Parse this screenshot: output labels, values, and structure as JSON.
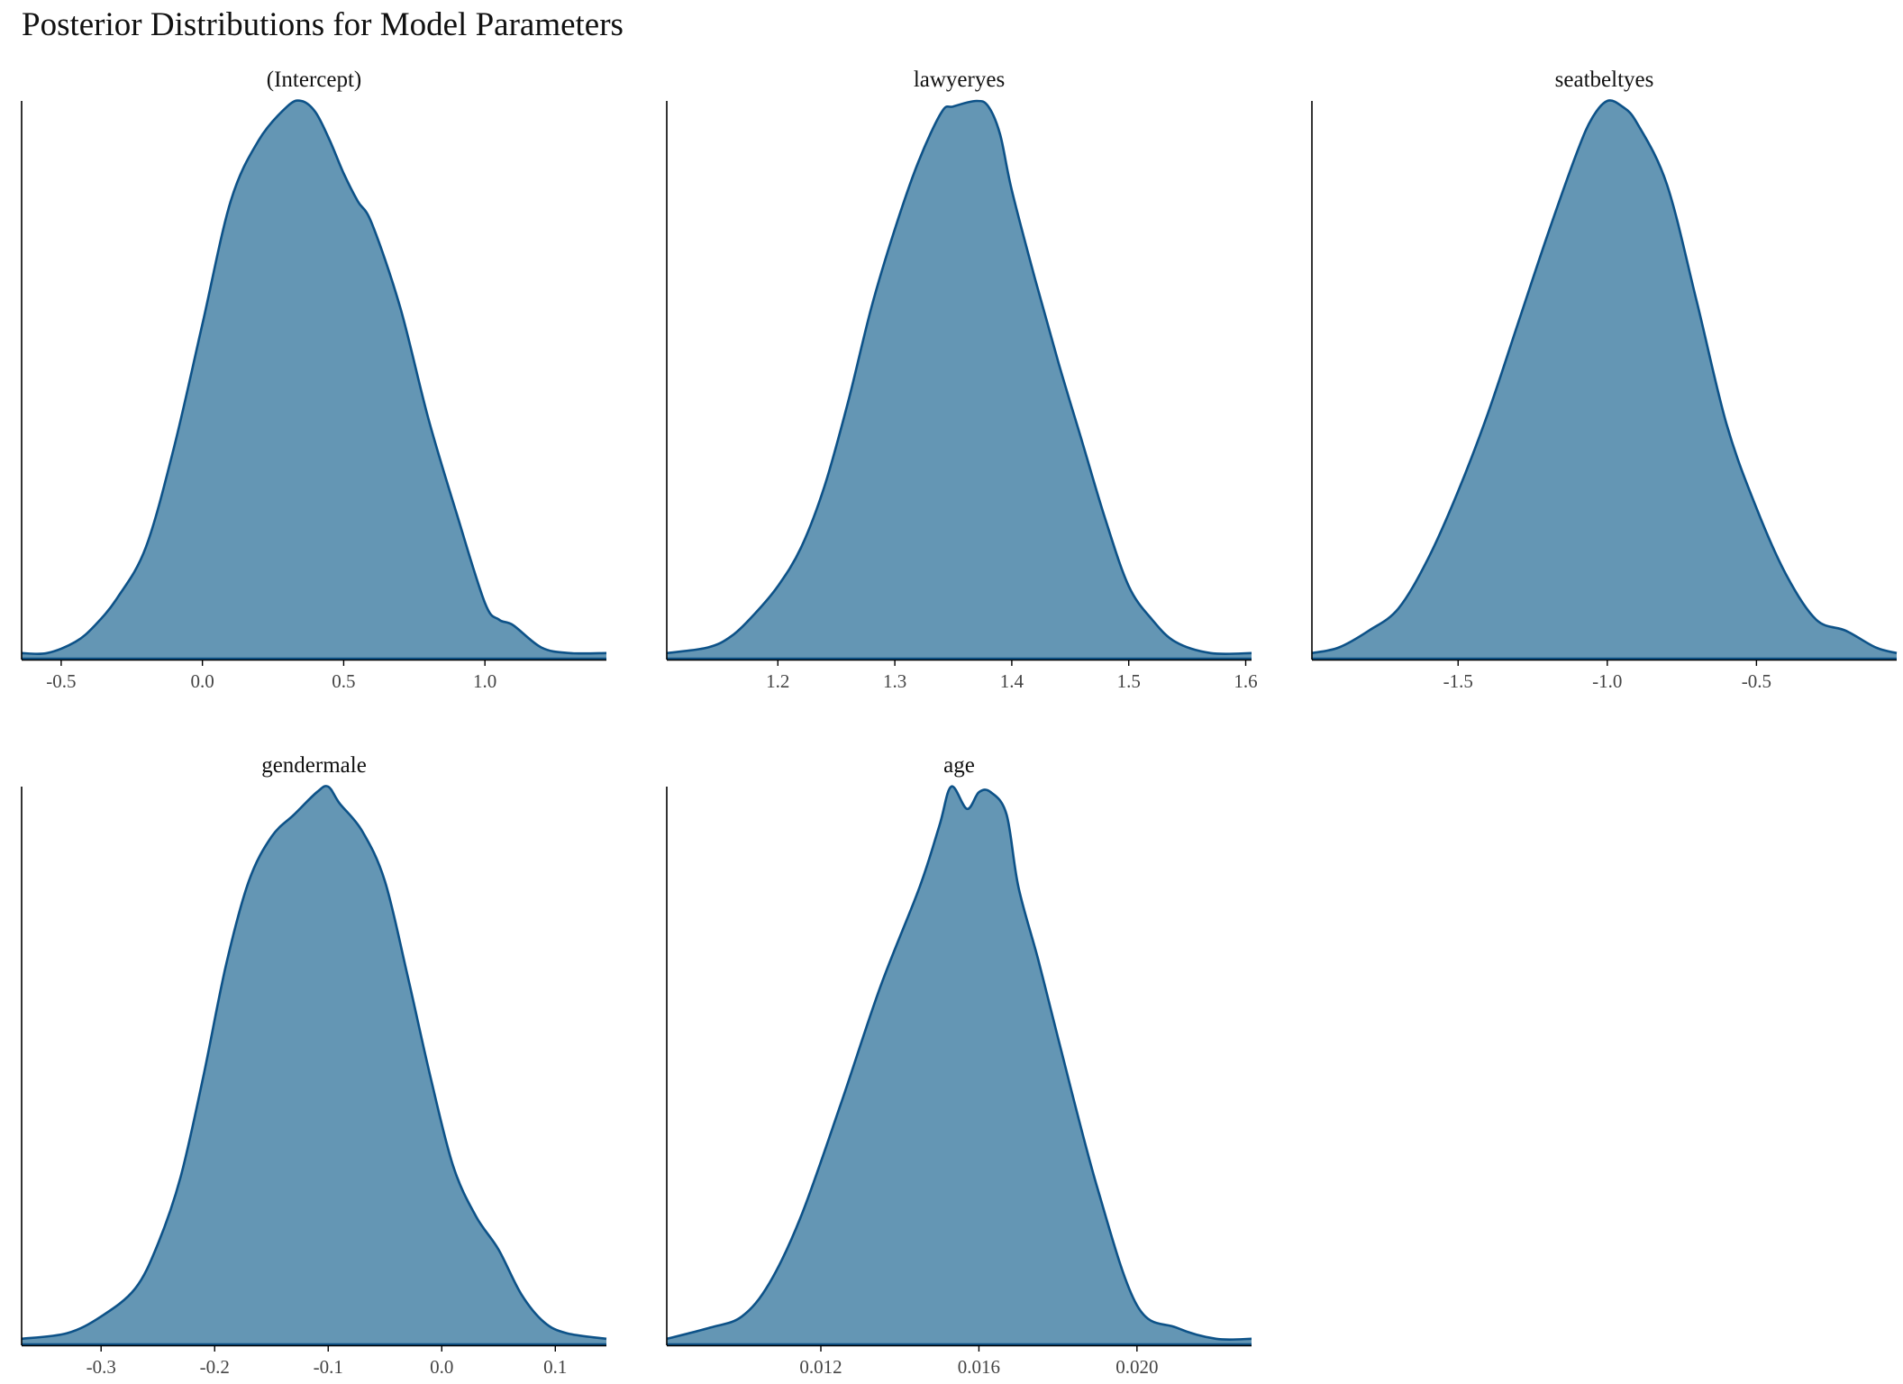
{
  "title": "Posterior Distributions for Model Parameters",
  "colors": {
    "fill": "#6496b4",
    "line": "#0d5288",
    "axis": "#000000"
  },
  "chart_data": [
    {
      "type": "area",
      "title": "(Intercept)",
      "xlim": [
        -0.64,
        1.43
      ],
      "ylim": [
        0,
        1
      ],
      "xticks": [
        -0.5,
        0.0,
        0.5,
        1.0
      ],
      "xtick_labels": [
        "-0.5",
        "0.0",
        "0.5",
        "1.0"
      ],
      "x": [
        -0.64,
        -0.55,
        -0.45,
        -0.38,
        -0.3,
        -0.2,
        -0.1,
        0.0,
        0.1,
        0.2,
        0.3,
        0.35,
        0.4,
        0.45,
        0.5,
        0.55,
        0.6,
        0.7,
        0.8,
        0.9,
        1.0,
        1.05,
        1.1,
        1.2,
        1.3,
        1.43
      ],
      "y": [
        0.01,
        0.01,
        0.03,
        0.06,
        0.11,
        0.2,
        0.38,
        0.6,
        0.82,
        0.93,
        0.99,
        1.0,
        0.98,
        0.93,
        0.87,
        0.82,
        0.78,
        0.63,
        0.43,
        0.26,
        0.1,
        0.07,
        0.06,
        0.02,
        0.01,
        0.01
      ]
    },
    {
      "type": "area",
      "title": "lawyeryes",
      "xlim": [
        1.105,
        1.605
      ],
      "ylim": [
        0,
        1
      ],
      "xticks": [
        1.2,
        1.3,
        1.4,
        1.5,
        1.6
      ],
      "xtick_labels": [
        "1.2",
        "1.3",
        "1.4",
        "1.5",
        "1.6"
      ],
      "x": [
        1.105,
        1.14,
        1.16,
        1.18,
        1.2,
        1.22,
        1.24,
        1.26,
        1.28,
        1.3,
        1.32,
        1.34,
        1.35,
        1.37,
        1.38,
        1.39,
        1.4,
        1.42,
        1.44,
        1.46,
        1.48,
        1.5,
        1.52,
        1.54,
        1.57,
        1.605
      ],
      "y": [
        0.01,
        0.02,
        0.04,
        0.08,
        0.13,
        0.2,
        0.31,
        0.46,
        0.63,
        0.77,
        0.89,
        0.98,
        0.99,
        1.0,
        0.99,
        0.94,
        0.84,
        0.68,
        0.53,
        0.39,
        0.25,
        0.13,
        0.07,
        0.03,
        0.01,
        0.01
      ]
    },
    {
      "type": "area",
      "title": "seatbeltyes",
      "xlim": [
        -1.99,
        -0.03
      ],
      "ylim": [
        0,
        1
      ],
      "xticks": [
        -1.5,
        -1.0,
        -0.5
      ],
      "xtick_labels": [
        "-1.5",
        "-1.0",
        "-0.5"
      ],
      "x": [
        -1.99,
        -1.9,
        -1.8,
        -1.7,
        -1.6,
        -1.5,
        -1.4,
        -1.3,
        -1.2,
        -1.1,
        -1.05,
        -1.0,
        -0.95,
        -0.9,
        -0.8,
        -0.7,
        -0.6,
        -0.5,
        -0.4,
        -0.3,
        -0.2,
        -0.1,
        -0.03
      ],
      "y": [
        0.01,
        0.02,
        0.05,
        0.09,
        0.18,
        0.3,
        0.44,
        0.6,
        0.76,
        0.91,
        0.97,
        1.0,
        0.99,
        0.96,
        0.85,
        0.64,
        0.42,
        0.27,
        0.15,
        0.07,
        0.05,
        0.02,
        0.01
      ]
    },
    {
      "type": "area",
      "title": "gendermale",
      "xlim": [
        -0.37,
        0.145
      ],
      "ylim": [
        0,
        1
      ],
      "xticks": [
        -0.3,
        -0.2,
        -0.1,
        0.0,
        0.1
      ],
      "xtick_labels": [
        "-0.3",
        "-0.2",
        "-0.1",
        "0.0",
        "0.1"
      ],
      "x": [
        -0.37,
        -0.33,
        -0.3,
        -0.27,
        -0.25,
        -0.23,
        -0.21,
        -0.19,
        -0.17,
        -0.15,
        -0.13,
        -0.11,
        -0.1,
        -0.09,
        -0.07,
        -0.05,
        -0.03,
        -0.01,
        0.01,
        0.03,
        0.05,
        0.07,
        0.09,
        0.11,
        0.145
      ],
      "y": [
        0.01,
        0.02,
        0.05,
        0.1,
        0.18,
        0.3,
        0.48,
        0.68,
        0.83,
        0.91,
        0.95,
        0.99,
        1.0,
        0.97,
        0.92,
        0.83,
        0.66,
        0.48,
        0.32,
        0.23,
        0.17,
        0.09,
        0.04,
        0.02,
        0.01
      ]
    },
    {
      "type": "area",
      "title": "age",
      "xlim": [
        0.0081,
        0.0229
      ],
      "ylim": [
        0,
        1
      ],
      "xticks": [
        0.012,
        0.016,
        0.02
      ],
      "xtick_labels": [
        "0.012",
        "0.016",
        "0.020"
      ],
      "x": [
        0.0081,
        0.0092,
        0.01,
        0.0107,
        0.0115,
        0.0125,
        0.0135,
        0.0145,
        0.015,
        0.0153,
        0.0157,
        0.016,
        0.0163,
        0.0167,
        0.017,
        0.0175,
        0.018,
        0.019,
        0.02,
        0.021,
        0.022,
        0.0229
      ],
      "y": [
        0.01,
        0.03,
        0.05,
        0.11,
        0.23,
        0.43,
        0.64,
        0.82,
        0.93,
        1.0,
        0.96,
        0.99,
        0.99,
        0.95,
        0.82,
        0.69,
        0.55,
        0.28,
        0.07,
        0.03,
        0.01,
        0.01
      ]
    }
  ]
}
